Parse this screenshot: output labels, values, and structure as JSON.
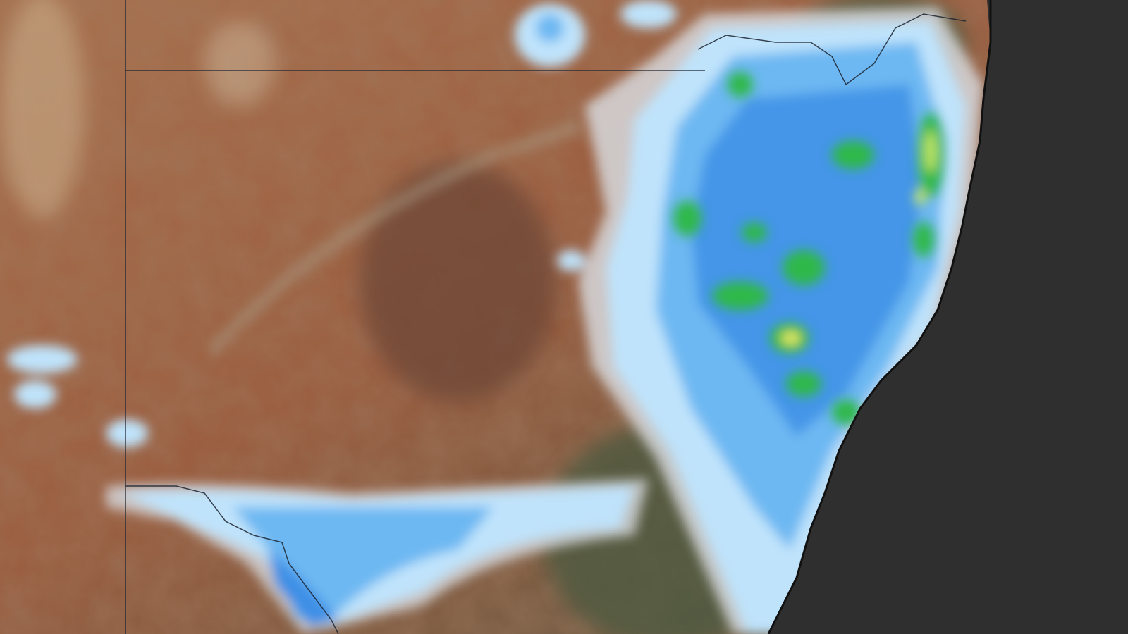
{
  "map": {
    "basemap": "satellite-imagery",
    "overlay": "rainfall-radar",
    "colors": {
      "ocean": "#2f2f2f",
      "land_arid": "#9a5a3c",
      "land_dark": "#6e4a36",
      "land_green": "#5c5a44",
      "rain_light": "#bfe3fb",
      "rain_mid": "#6db8f2",
      "rain_strong": "#3d8fe6",
      "rain_heavy": "#2fb84a",
      "rain_peak": "#e6ea6a",
      "border_line": "#1d2430"
    }
  }
}
